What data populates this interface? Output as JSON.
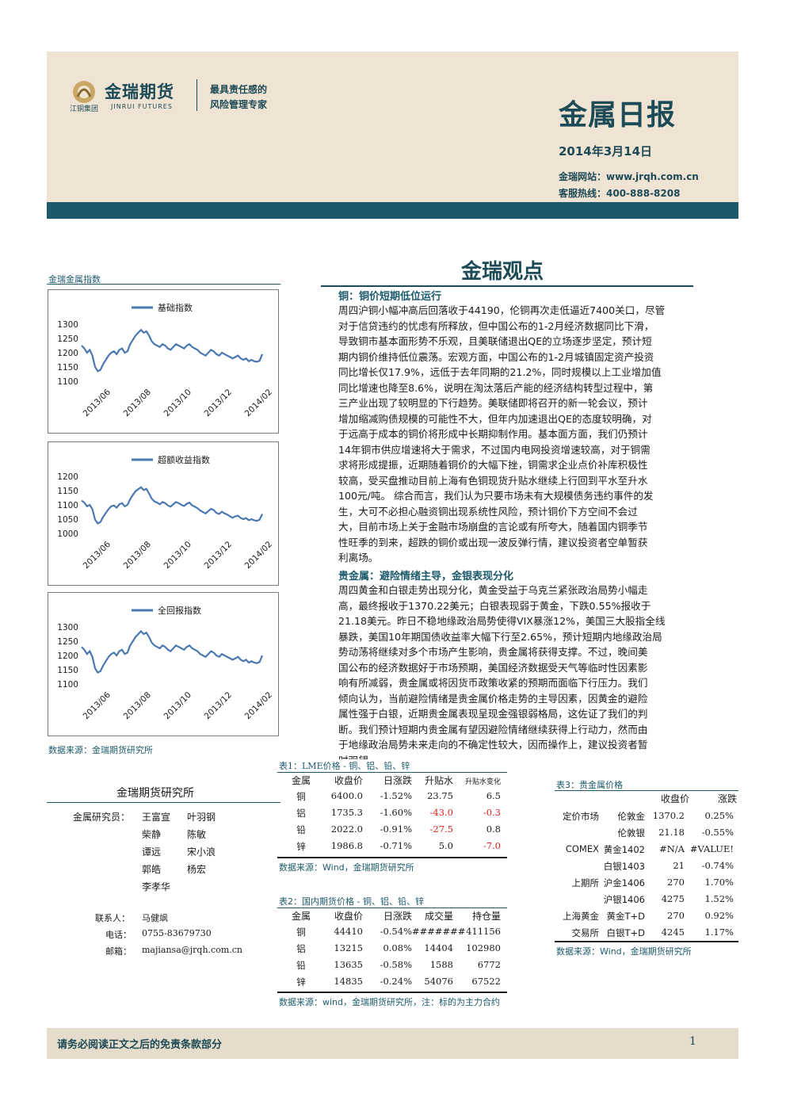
{
  "header": {
    "logo_name": "金瑞期货",
    "logo_group": "江铜集团",
    "logo_en": "JINRUI FUTURES",
    "slogan_line1": "最具责任感的",
    "slogan_line2": "风险管理专家",
    "report_title": "金属日报",
    "date": "2014年3月14日",
    "website": "金瑞网站：www.jrqh.com.cn",
    "hotline": "客服热线：400-888-8208"
  },
  "section_title": "金瑞观点",
  "charts": {
    "title": "金瑞金属指数",
    "source": "数据来源：金瑞期货研究所"
  },
  "chart_data": [
    {
      "type": "line",
      "title": "",
      "series": [
        {
          "name": "基础指数",
          "color": "#4a78b0"
        }
      ],
      "y_ticks": [
        "1300",
        "1250",
        "1200",
        "1150",
        "1100"
      ],
      "ylim": [
        1100,
        1300
      ],
      "x_ticks": [
        "2013/06",
        "2013/08",
        "2013/10",
        "2013/12",
        "2014/02"
      ],
      "values": [
        1225,
        1215,
        1200,
        1210,
        1190,
        1150,
        1135,
        1140,
        1160,
        1175,
        1190,
        1200,
        1205,
        1195,
        1210,
        1215,
        1200,
        1205,
        1230,
        1245,
        1260,
        1270,
        1280,
        1270,
        1275,
        1260,
        1240,
        1230,
        1225,
        1220,
        1230,
        1225,
        1215,
        1210,
        1220,
        1230,
        1225,
        1220,
        1215,
        1225,
        1230,
        1220,
        1215,
        1210,
        1200,
        1195,
        1190,
        1200,
        1210,
        1205,
        1195,
        1190,
        1200,
        1195,
        1190,
        1185,
        1180,
        1185,
        1190,
        1180,
        1175,
        1180,
        1170,
        1175,
        1170,
        1168,
        1172,
        1195
      ]
    },
    {
      "type": "line",
      "title": "",
      "series": [
        {
          "name": "超额收益指数",
          "color": "#4a78b0"
        }
      ],
      "y_ticks": [
        "1200",
        "1150",
        "1100",
        "1050",
        "1000"
      ],
      "ylim": [
        1000,
        1200
      ],
      "x_ticks": [
        "2013/06",
        "2013/08",
        "2013/10",
        "2013/12",
        "2014/02"
      ],
      "values": [
        1115,
        1108,
        1095,
        1100,
        1085,
        1048,
        1035,
        1040,
        1058,
        1072,
        1085,
        1095,
        1098,
        1090,
        1102,
        1106,
        1095,
        1100,
        1120,
        1135,
        1148,
        1155,
        1162,
        1152,
        1156,
        1140,
        1122,
        1112,
        1108,
        1102,
        1110,
        1106,
        1098,
        1094,
        1102,
        1110,
        1106,
        1100,
        1096,
        1104,
        1108,
        1098,
        1094,
        1088,
        1080,
        1075,
        1070,
        1078,
        1086,
        1082,
        1072,
        1068,
        1076,
        1070,
        1066,
        1060,
        1055,
        1060,
        1062,
        1054,
        1050,
        1054,
        1046,
        1050,
        1046,
        1044,
        1048,
        1068
      ]
    },
    {
      "type": "line",
      "title": "",
      "series": [
        {
          "name": "全回报指数",
          "color": "#4a78b0"
        }
      ],
      "y_ticks": [
        "1300",
        "1250",
        "1200",
        "1150",
        "1100"
      ],
      "ylim": [
        1100,
        1300
      ],
      "x_ticks": [
        "2013/06",
        "2013/08",
        "2013/10",
        "2013/12",
        "2014/02"
      ],
      "values": [
        1230,
        1220,
        1205,
        1215,
        1195,
        1155,
        1140,
        1145,
        1165,
        1180,
        1195,
        1205,
        1210,
        1200,
        1215,
        1220,
        1205,
        1210,
        1235,
        1250,
        1265,
        1275,
        1285,
        1275,
        1280,
        1265,
        1245,
        1235,
        1230,
        1225,
        1235,
        1230,
        1220,
        1215,
        1225,
        1235,
        1230,
        1225,
        1220,
        1230,
        1235,
        1225,
        1220,
        1215,
        1205,
        1200,
        1195,
        1205,
        1215,
        1210,
        1200,
        1195,
        1205,
        1200,
        1195,
        1190,
        1185,
        1190,
        1195,
        1185,
        1180,
        1185,
        1175,
        1180,
        1175,
        1173,
        1177,
        1200
      ]
    }
  ],
  "institute": {
    "title": "金瑞期货研究所",
    "role_label": "金属研究员：",
    "staff": [
      [
        "王富宣",
        "叶羽钢"
      ],
      [
        "柴静",
        "陈敏"
      ],
      [
        "谭远",
        "宋小浪"
      ],
      [
        "郭皓",
        "杨宏"
      ],
      [
        "李孝华",
        ""
      ]
    ],
    "contact_label": "联系人：",
    "contact_name": "马健飒",
    "phone_label": "电话：",
    "phone": "0755-83679730",
    "email_label": "邮箱：",
    "email": "majiansa@jrqh.com.cn"
  },
  "copper": {
    "heading": "铜：铜价短期低位运行",
    "lines": [
      "周四沪铜小幅冲高后回落收于44190，伦铜再次走低逼近7400关口，尽管",
      "对于信贷违约的忧虑有所释放，但中国公布的1-2月经济数据同比下滑，",
      "导致铜市基本面形势不乐观，且美联储退出QE的立场逐步坚定，预计短",
      "期内铜价维持低位震荡。宏观方面，中国公布的1-2月城镇固定资产投资",
      "同比增长仅17.9%，远低于去年同期的21.2%，同时规模以上工业增加值",
      "同比增速也降至8.6%，说明在淘汰落后产能的经济结构转型过程中，第",
      "三产业出现了较明显的下行趋势。美联储即将召开的新一轮会议，预计",
      "增加缩减购债规模的可能性不大，但年内加速退出QE的态度较明确，对",
      "于远高于成本的铜价将形成中长期抑制作用。基本面方面，我们仍预计",
      "14年铜市供应增速将大于需求，不过国内电网投资增速较高，对于铜需",
      "求将形成提振，近期随着铜价的大幅下挫，铜需求企业点价补库积极性",
      "较高，受买盘推动目前上海有色铜现货升贴水继续上行回到平水至升水",
      "100元/吨。 综合而言，我们认为只要市场未有大规模债务违约事件的发",
      "生，大可不必担心融资铜出现系统性风险，预计铜价下方空间不会过",
      "大，目前市场上关于金融市场崩盘的言论或有所夸大，随着国内铜季节",
      "性旺季的到来，超跌的铜价或出现一波反弹行情，建议投资者空单暂获",
      "利离场。"
    ]
  },
  "precious": {
    "heading": "贵金属：避险情绪主导，金银表现分化",
    "lines": [
      "周四黄金和白银走势出现分化，黄金受益于乌克兰紧张政治局势小幅走",
      "高，最终报收于1370.22美元；白银表现弱于黄金，下跌0.55%报收于",
      "21.18美元。昨日不稳地缘政治局势使得VIX暴涨12%，美国三大股指全线",
      "暴跌，美国10年期国债收益率大幅下行至2.65%，预计短期内地缘政治局",
      "势动荡将继续对多个市场产生影响，贵金属将获得支撑。不过，晚间美",
      "国公布的经济数据好于市场预期，美国经济数据受天气等临时性因素影",
      "响有所减弱，贵金属或将因货币政策收紧的预期而面临下行压力。我们",
      "倾向认为，当前避险情绪是贵金属价格走势的主导因素，因黄金的避险",
      "属性强于白银，近期贵金属表现呈现金强银弱格局，这佐证了我们的判",
      "断。我们预计短期内贵金属有望因避险情绪继续获得上行动力，然而由",
      "于地缘政治局势未来走向的不确定性较大，因而操作上，建议投资者暂",
      "时观望。"
    ]
  },
  "table1": {
    "title": "表1：LME价格 - 铜、铝、铅、锌",
    "headers": [
      "金属",
      "收盘价",
      "日涨跌",
      "升贴水",
      "升贴水变化"
    ],
    "rows": [
      [
        "铜",
        "6400.0",
        "-1.52%",
        "23.75",
        "6.5"
      ],
      [
        "铝",
        "1735.3",
        "-1.60%",
        "-43.0",
        "-0.3"
      ],
      [
        "铅",
        "2022.0",
        "-0.91%",
        "-27.5",
        "0.8"
      ],
      [
        "锌",
        "1986.8",
        "-0.71%",
        "5.0",
        "-7.0"
      ]
    ],
    "red_cells": [
      [
        1,
        3
      ],
      [
        1,
        4
      ],
      [
        2,
        3
      ],
      [
        3,
        4
      ]
    ],
    "source": "数据来源：Wind，金瑞期货研究所"
  },
  "table2": {
    "title": "表2：国内期货价格 - 铜、铝、铅、锌",
    "headers": [
      "金属",
      "收盘价",
      "日涨跌",
      "成交量",
      "持仓量"
    ],
    "rows": [
      [
        "铜",
        "44410",
        "-0.54%",
        "#######",
        "411156"
      ],
      [
        "铝",
        "13215",
        "0.08%",
        "14404",
        "102980"
      ],
      [
        "铅",
        "13635",
        "-0.58%",
        "1588",
        "6772"
      ],
      [
        "锌",
        "14835",
        "-0.24%",
        "54076",
        "67522"
      ]
    ],
    "source": "数据来源：wind，金瑞期货研究所，注：标的为主力合约"
  },
  "table3": {
    "title": "表3：贵金属价格",
    "headers": [
      "收盘价",
      "涨跌"
    ],
    "rows": [
      [
        "定价市场",
        "伦敦金",
        "1370.2",
        "0.25%"
      ],
      [
        "",
        "伦敦银",
        "21.18",
        "-0.55%"
      ],
      [
        "COMEX",
        "黄金1402",
        "#N/A",
        "#VALUE!"
      ],
      [
        "",
        "白银1403",
        "21",
        "-0.74%"
      ],
      [
        "上期所",
        "沪金1406",
        "270",
        "1.70%"
      ],
      [
        "",
        "沪银1406",
        "4275",
        "1.52%"
      ],
      [
        "上海黄金",
        "黄金T+D",
        "270",
        "0.92%"
      ],
      [
        "交易所",
        "白银T+D",
        "4245",
        "1.17%"
      ]
    ],
    "source": "数据来源：Wind，金瑞期货研究所"
  },
  "footer": {
    "disclaimer": "请务必阅读正文之后的免责条款部分",
    "page": "1"
  }
}
